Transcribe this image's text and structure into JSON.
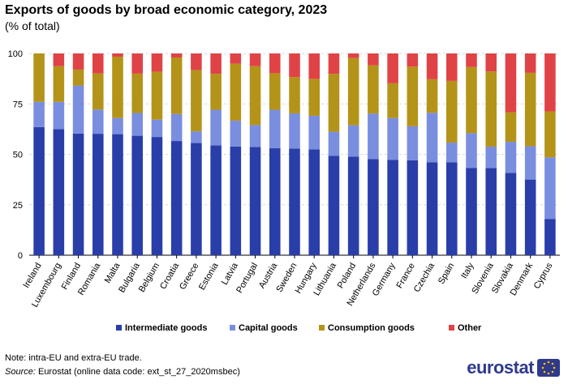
{
  "title": "Exports of goods by broad economic category, 2023",
  "subtitle": "(% of total)",
  "note": "Note: intra-EU and extra-EU trade.",
  "source_label": "Source:",
  "source_text": " Eurostat (online data code: ext_st_27_2020msbec)",
  "logo_text": "eurostat",
  "colors": {
    "Intermediate goods": "#2a3ea9",
    "Capital goods": "#7a8ee0",
    "Consumption goods": "#b49319",
    "Other": "#e04346",
    "grid": "#d9d9d9",
    "axis": "#000000",
    "logo": "#2f3a8c",
    "logo_accent": "#f5c400"
  },
  "chart_data": {
    "type": "bar",
    "stacked": true,
    "title": "Exports of goods by broad economic category, 2023",
    "subtitle": "(% of total)",
    "xlabel": "",
    "ylabel": "",
    "ylim": [
      0,
      100
    ],
    "yticks": [
      0,
      25,
      50,
      75,
      100
    ],
    "grid": true,
    "legend_position": "bottom",
    "categories": [
      "Ireland",
      "Luxembourg",
      "Finland",
      "Romania",
      "Malta",
      "Bulgaria",
      "Belgium",
      "Croatia",
      "Greece",
      "Estonia",
      "Latvia",
      "Portugal",
      "Austria",
      "Sweden",
      "Hungary",
      "Lithuania",
      "Poland",
      "Netherlands",
      "Germany",
      "France",
      "Czechia",
      "Spain",
      "Italy",
      "Slovenia",
      "Slovakia",
      "Denmark",
      "Cyprus"
    ],
    "series": [
      {
        "name": "Intermediate goods",
        "values": [
          63.5,
          62.5,
          60.3,
          60.2,
          60.0,
          59.2,
          58.6,
          56.6,
          55.6,
          54.4,
          53.9,
          53.7,
          53.0,
          52.9,
          52.4,
          49.2,
          48.8,
          47.7,
          47.3,
          47.0,
          46.1,
          46.0,
          43.3,
          43.2,
          40.8,
          37.5,
          18.0
        ]
      },
      {
        "name": "Capital goods",
        "values": [
          12.5,
          13.5,
          23.8,
          12.0,
          8.0,
          11.3,
          8.6,
          13.4,
          5.8,
          17.7,
          12.8,
          10.8,
          19.1,
          17.4,
          16.7,
          12.0,
          15.6,
          22.5,
          20.7,
          16.9,
          24.5,
          9.8,
          17.2,
          10.6,
          15.4,
          16.5,
          30.5
        ]
      },
      {
        "name": "Consumption goods",
        "values": [
          24.0,
          17.7,
          7.9,
          17.9,
          30.4,
          19.5,
          23.8,
          28.0,
          30.4,
          17.8,
          28.2,
          29.2,
          18.1,
          18.0,
          18.3,
          28.7,
          33.3,
          23.9,
          17.2,
          29.6,
          16.6,
          30.6,
          32.8,
          37.3,
          14.7,
          36.4,
          22.8
        ]
      },
      {
        "name": "Other",
        "values": [
          0.0,
          6.3,
          8.0,
          9.9,
          1.6,
          10.0,
          9.0,
          2.0,
          8.2,
          10.1,
          5.1,
          6.3,
          9.8,
          11.7,
          12.6,
          10.1,
          2.3,
          5.9,
          14.8,
          6.5,
          12.8,
          13.6,
          6.7,
          8.9,
          29.1,
          9.6,
          28.7
        ]
      }
    ]
  }
}
